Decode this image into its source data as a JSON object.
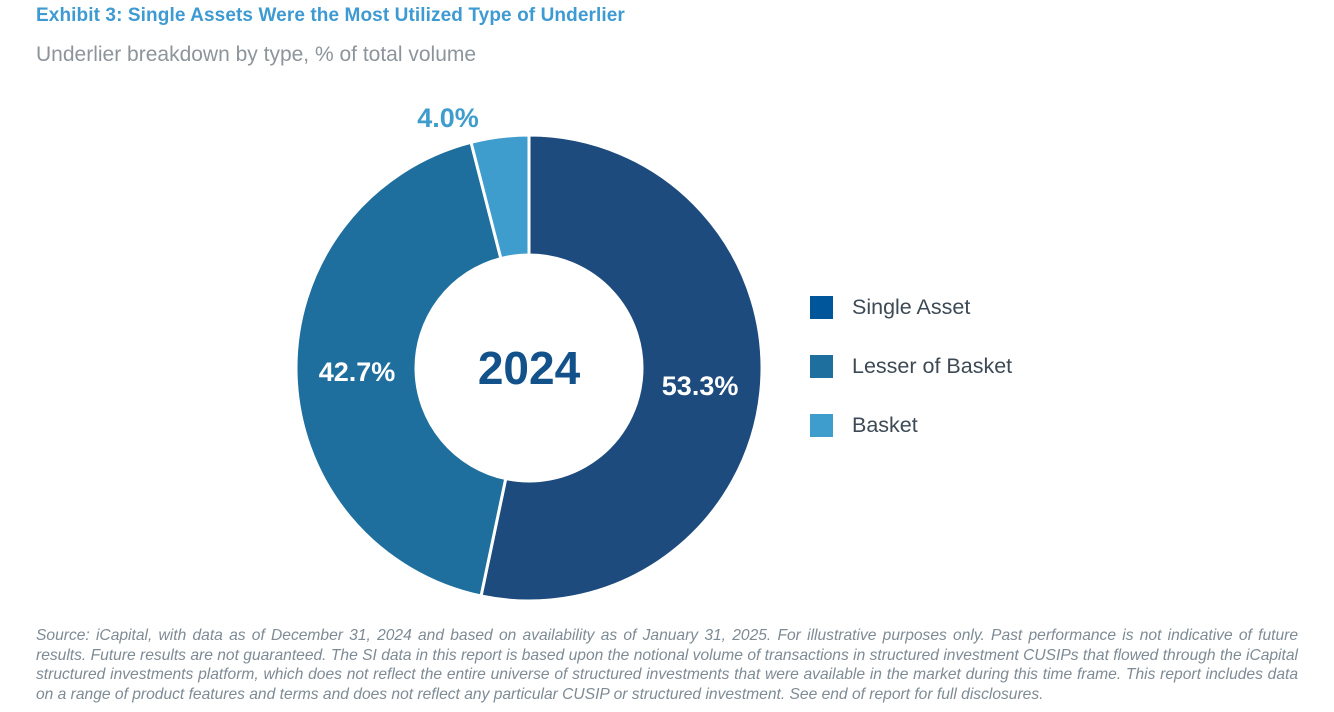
{
  "header": {
    "title": "Exhibit 3: Single Assets Were the Most Utilized Type of Underlier",
    "subtitle": "Underlier breakdown by type, % of total volume"
  },
  "chart_data": {
    "type": "pie",
    "donut": true,
    "title": "Exhibit 3: Single Assets Were the Most Utilized Type of Underlier",
    "subtitle": "Underlier breakdown by type, % of total volume",
    "center_label": "2024",
    "categories": [
      "Single Asset",
      "Lesser of Basket",
      "Basket"
    ],
    "values": [
      53.3,
      42.7,
      4.0
    ],
    "value_labels": [
      "53.3%",
      "42.7%",
      "4.0%"
    ],
    "colors": [
      "#1e4b7e",
      "#1f6f9e",
      "#3f9dcd"
    ],
    "legend_colors": [
      "#00569b",
      "#1f6f9e",
      "#3f9dcd"
    ],
    "center_label_color": "#125189",
    "start_angle_deg": 0,
    "direction": "clockwise",
    "legend_position": "right",
    "units": "% of total volume"
  },
  "legend": {
    "items": [
      {
        "label": "Single Asset"
      },
      {
        "label": "Lesser of Basket"
      },
      {
        "label": "Basket"
      }
    ]
  },
  "footer": {
    "source_text": "Source: iCapital, with data as of December 31, 2024 and based on availability as of January 31, 2025. For illustrative purposes only. Past performance is not indicative of future results. Future results are not guaranteed. The SI data in this report is based upon the notional volume of transactions in structured investment CUSIPs that flowed through the iCapital structured investments platform, which does not reflect the entire universe of structured investments that were available in the market during this time frame. This report includes data on a range of product features and terms and does not reflect any particular CUSIP or structured investment. See end of report for full disclosures."
  }
}
